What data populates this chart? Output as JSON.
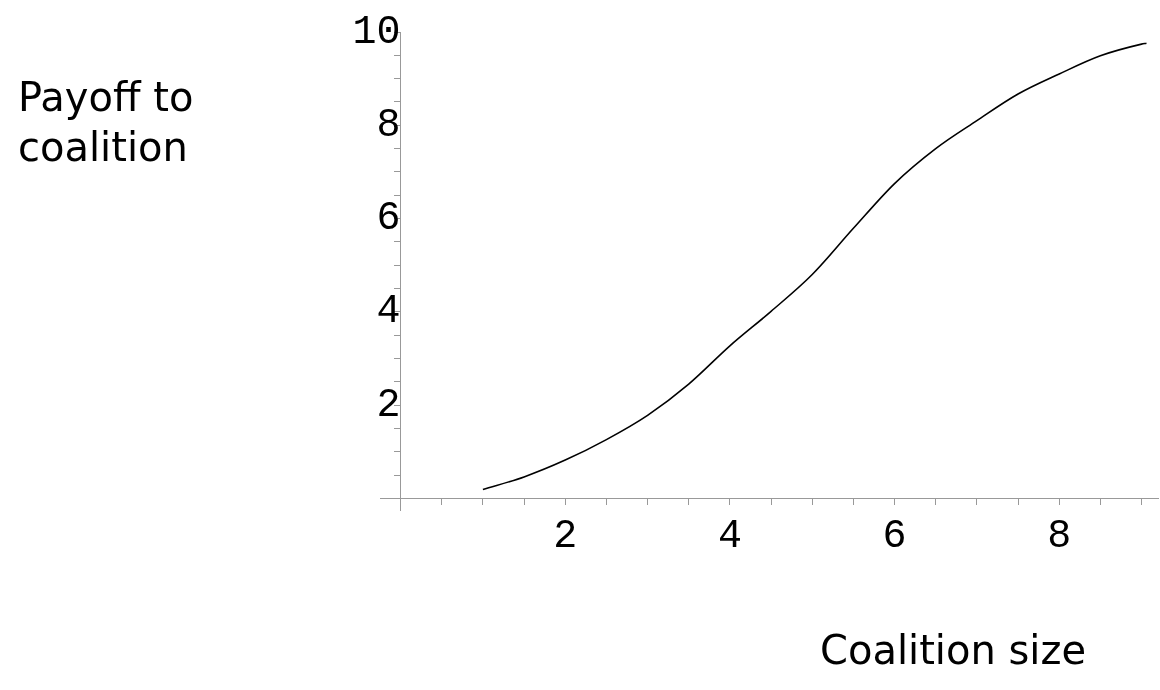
{
  "chart_data": {
    "type": "line",
    "xlabel": "Coalition size",
    "ylabel": "Payoff to\ncoalition",
    "x": [
      1,
      1.5,
      2,
      2.5,
      3,
      3.5,
      4,
      4.5,
      5,
      5.5,
      6,
      6.5,
      7,
      7.5,
      8,
      8.5,
      9,
      9.06
    ],
    "series": [
      {
        "color": "#000000",
        "values": [
          0.19,
          0.46,
          0.82,
          1.26,
          1.78,
          2.45,
          3.27,
          4.01,
          4.8,
          5.79,
          6.75,
          7.5,
          8.1,
          8.67,
          9.1,
          9.49,
          9.74,
          9.76
        ]
      }
    ],
    "xlim": [
      -0.25,
      9.2
    ],
    "ylim": [
      -0.25,
      10
    ],
    "xticks": [
      {
        "value": 0.5,
        "label": null
      },
      {
        "value": 1,
        "label": null
      },
      {
        "value": 1.5,
        "label": null
      },
      2,
      {
        "value": 2.5,
        "label": null
      },
      {
        "value": 3,
        "label": null
      },
      {
        "value": 3.5,
        "label": null
      },
      4,
      {
        "value": 4.5,
        "label": null
      },
      {
        "value": 5,
        "label": null
      },
      {
        "value": 5.5,
        "label": null
      },
      6,
      {
        "value": 6.5,
        "label": null
      },
      {
        "value": 7,
        "label": null
      },
      {
        "value": 7.5,
        "label": null
      },
      8,
      {
        "value": 8.5,
        "label": null
      },
      {
        "value": 9,
        "label": null
      }
    ],
    "yticks": [
      {
        "value": 0.5,
        "label": null
      },
      {
        "value": 1,
        "label": null
      },
      {
        "value": 1.5,
        "label": null
      },
      2,
      {
        "value": 2.5,
        "label": null
      },
      {
        "value": 3,
        "label": null
      },
      {
        "value": 3.5,
        "label": null
      },
      4,
      {
        "value": 4.5,
        "label": null
      },
      {
        "value": 5,
        "label": null
      },
      {
        "value": 5.5,
        "label": null
      },
      6,
      {
        "value": 6.5,
        "label": null
      },
      {
        "value": 7,
        "label": null
      },
      {
        "value": 7.5,
        "label": null
      },
      8,
      {
        "value": 8.5,
        "label": null
      },
      {
        "value": 9,
        "label": null
      },
      {
        "value": 9.5,
        "label": null
      },
      10
    ]
  }
}
